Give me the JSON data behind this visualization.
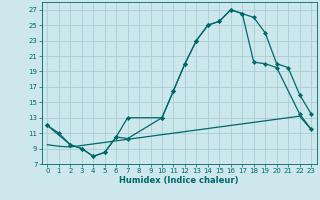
{
  "xlabel": "Humidex (Indice chaleur)",
  "bg_color": "#cce8ec",
  "grid_color": "#aacdd4",
  "line_color": "#006868",
  "xlim": [
    -0.5,
    23.5
  ],
  "ylim": [
    7,
    28
  ],
  "yticks": [
    7,
    9,
    11,
    13,
    15,
    17,
    19,
    21,
    23,
    25,
    27
  ],
  "xticks": [
    0,
    1,
    2,
    3,
    4,
    5,
    6,
    7,
    8,
    9,
    10,
    11,
    12,
    13,
    14,
    15,
    16,
    17,
    18,
    19,
    20,
    21,
    22,
    23
  ],
  "line1_x": [
    0,
    1,
    2,
    3,
    4,
    5,
    6,
    7,
    10,
    11,
    12,
    13,
    14,
    15,
    16,
    17,
    18,
    19,
    20,
    21,
    22,
    23
  ],
  "line1_y": [
    12,
    11,
    9.5,
    9.0,
    8.0,
    8.5,
    10.5,
    10.3,
    13.0,
    16.5,
    20.0,
    23.0,
    25.0,
    25.5,
    27.0,
    26.5,
    26.0,
    24.0,
    20.0,
    19.5,
    16.0,
    13.5
  ],
  "line2_x": [
    0,
    2,
    3,
    4,
    5,
    6,
    7,
    10,
    11,
    12,
    13,
    14,
    15,
    16,
    17,
    18,
    19,
    20,
    22,
    23
  ],
  "line2_y": [
    12,
    9.5,
    9.0,
    8.0,
    8.5,
    10.5,
    13.0,
    13.0,
    16.5,
    20.0,
    23.0,
    25.0,
    25.5,
    27.0,
    26.5,
    20.2,
    20.0,
    19.5,
    13.5,
    11.5
  ],
  "line3_x": [
    0,
    1,
    2,
    3,
    4,
    5,
    6,
    7,
    8,
    9,
    10,
    11,
    12,
    13,
    14,
    15,
    16,
    17,
    18,
    19,
    20,
    21,
    22,
    23
  ],
  "line3_y": [
    9.5,
    9.3,
    9.2,
    9.4,
    9.6,
    9.8,
    10.0,
    10.2,
    10.4,
    10.6,
    10.8,
    11.0,
    11.2,
    11.4,
    11.6,
    11.8,
    12.0,
    12.2,
    12.4,
    12.6,
    12.8,
    13.0,
    13.2,
    11.5
  ]
}
